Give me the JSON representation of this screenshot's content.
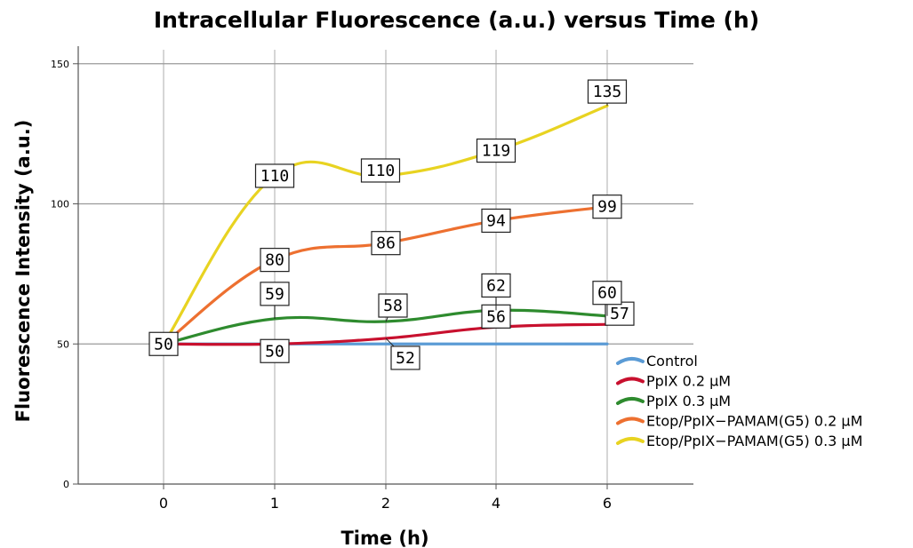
{
  "chart_data": {
    "type": "line",
    "title": "Intracellular Fluorescence (a.u.) versus Time (h)",
    "xlabel": "Time (h)",
    "ylabel": "Fluorescence Intensity (a.u.)",
    "categories": [
      "0",
      "1",
      "2",
      "4",
      "6"
    ],
    "ylim": [
      0,
      155
    ],
    "yticks": [
      0,
      50,
      100,
      150
    ],
    "grid": true,
    "legend_position": "right",
    "series": [
      {
        "name": "Control",
        "color": "#5b9bd5",
        "values": [
          50,
          50,
          50,
          50,
          50
        ],
        "labels": []
      },
      {
        "name": "PpIX 0.2 μM",
        "color": "#c8102e",
        "values": [
          50,
          50,
          52,
          56,
          57
        ],
        "labels": [
          "50",
          "50",
          "52",
          "56",
          "57"
        ]
      },
      {
        "name": "PpIX 0.3 μM",
        "color": "#2e8b2e",
        "values": [
          50,
          59,
          58,
          62,
          60
        ],
        "labels": [
          "",
          "59",
          "58",
          "62",
          "60"
        ]
      },
      {
        "name": "Etop/PpIX−PAMAM(G5) 0.2 μM",
        "color": "#ed7030",
        "values": [
          50,
          80,
          86,
          94,
          99
        ],
        "labels": [
          "",
          "80",
          "86",
          "94",
          "99"
        ]
      },
      {
        "name": "Etop/PpIX−PAMAM(G5) 0.3 μM",
        "color": "#e8d321",
        "values": [
          50,
          110,
          110,
          119,
          135
        ],
        "labels": [
          "",
          "110",
          "110",
          "119",
          "135"
        ]
      }
    ]
  }
}
